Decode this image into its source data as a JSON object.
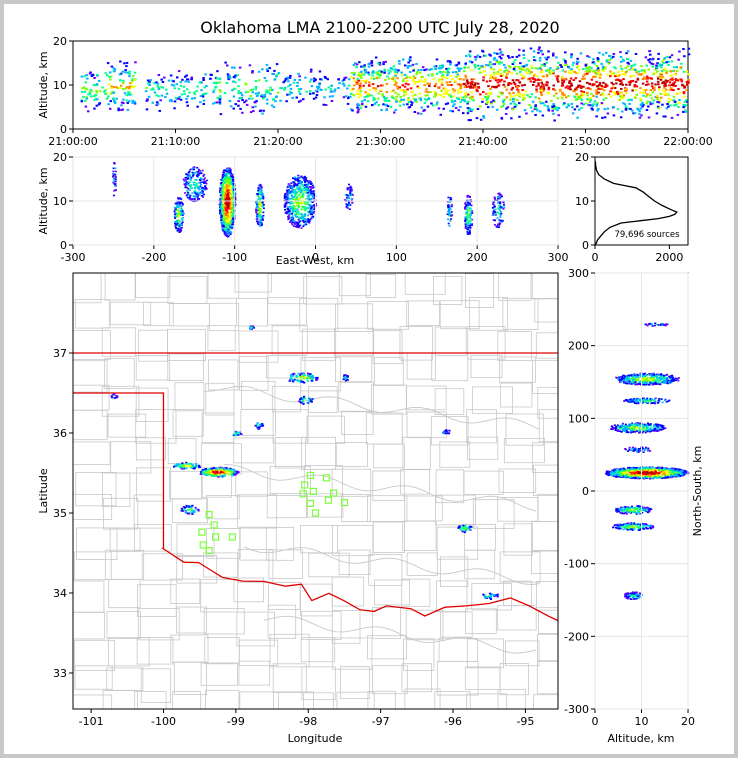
{
  "title": "Oklahoma LMA 2100-2200 UTC July 28, 2020",
  "colors": {
    "state_border": "#e00000",
    "county_lines": "#c8c8c8",
    "station": "#7cff3a",
    "palette": [
      "#6a00ff",
      "#0000ff",
      "#00b4ff",
      "#00ff90",
      "#7cff00",
      "#ffff00",
      "#ff8c00",
      "#ff0000",
      "#b40000",
      "#000000",
      "#ffffff"
    ]
  },
  "chart_data": [
    {
      "id": "time_height",
      "type": "heatmap",
      "ylabel": "Altitude, km",
      "ylim": [
        0,
        20
      ],
      "yticks": [
        "0",
        "10",
        "20"
      ],
      "xlim_minutes": [
        0,
        60
      ],
      "xticks": [
        "21:00:00",
        "21:10:00",
        "21:20:00",
        "21:30:00",
        "21:40:00",
        "21:50:00",
        "22:00:00"
      ],
      "activity": [
        {
          "start_min": 0.5,
          "end_min": 3,
          "alt_km": [
            3,
            15
          ],
          "intensity": 0.35
        },
        {
          "start_min": 3,
          "end_min": 6,
          "alt_km": [
            4,
            16
          ],
          "intensity": 0.55
        },
        {
          "start_min": 7,
          "end_min": 13,
          "alt_km": [
            4,
            14
          ],
          "intensity": 0.3
        },
        {
          "start_min": 13,
          "end_min": 20,
          "alt_km": [
            3,
            16
          ],
          "intensity": 0.35
        },
        {
          "start_min": 20,
          "end_min": 27,
          "alt_km": [
            5,
            14
          ],
          "intensity": 0.25
        },
        {
          "start_min": 27,
          "end_min": 38,
          "alt_km": [
            3,
            17
          ],
          "intensity": 0.7
        },
        {
          "start_min": 38,
          "end_min": 60,
          "alt_km": [
            2,
            19
          ],
          "intensity": 0.85
        }
      ]
    },
    {
      "id": "east_west",
      "type": "heatmap",
      "xlabel": "East-West, km",
      "ylabel": "Altitude, km",
      "xlim": [
        -300,
        300
      ],
      "ylim": [
        0,
        20
      ],
      "xticks": [
        "-300",
        "-200",
        "-100",
        "0",
        "100",
        "200",
        "300"
      ],
      "yticks": [
        "0",
        "10",
        "20"
      ],
      "cells": [
        {
          "x": -250,
          "alt": 15,
          "w": 4,
          "h": 8,
          "intensity": 0.25
        },
        {
          "x": -170,
          "alt": 7,
          "w": 12,
          "h": 8,
          "intensity": 0.5
        },
        {
          "x": -150,
          "alt": 14,
          "w": 30,
          "h": 8,
          "intensity": 0.3
        },
        {
          "x": -110,
          "alt": 10,
          "w": 20,
          "h": 16,
          "intensity": 1.0
        },
        {
          "x": -70,
          "alt": 9,
          "w": 10,
          "h": 10,
          "intensity": 0.5
        },
        {
          "x": -20,
          "alt": 10,
          "w": 40,
          "h": 12,
          "intensity": 0.45
        },
        {
          "x": 40,
          "alt": 11,
          "w": 10,
          "h": 6,
          "intensity": 0.2
        },
        {
          "x": 165,
          "alt": 8,
          "w": 6,
          "h": 8,
          "intensity": 0.2
        },
        {
          "x": 188,
          "alt": 7,
          "w": 10,
          "h": 9,
          "intensity": 0.4
        },
        {
          "x": 225,
          "alt": 8,
          "w": 15,
          "h": 8,
          "intensity": 0.25
        }
      ]
    },
    {
      "id": "altitude_histogram",
      "type": "line",
      "xlim": [
        0,
        2500
      ],
      "ylim": [
        0,
        20
      ],
      "xticks": [
        "0",
        "2000"
      ],
      "yticks": [
        "0",
        "10",
        "20"
      ],
      "annotation": "79,696 sources",
      "x": [
        0,
        40,
        60,
        100,
        150,
        250,
        400,
        700,
        1200,
        1700,
        2000,
        2150,
        2200,
        2050,
        1800,
        1600,
        1450,
        1300,
        1100,
        800,
        500,
        250,
        100,
        40,
        20,
        10
      ],
      "y": [
        0,
        0.5,
        1,
        1.5,
        2,
        3,
        4,
        5,
        5.5,
        6,
        6.5,
        7,
        7.5,
        8,
        9,
        10,
        11,
        12,
        13,
        13.5,
        14,
        15,
        16,
        17,
        18,
        19
      ]
    },
    {
      "id": "plan_view",
      "type": "scatter",
      "xlabel": "Longitude",
      "ylabel": "Latitude",
      "xlim": [
        -101.25,
        -94.55
      ],
      "ylim": [
        32.55,
        38.0
      ],
      "xticks": [
        "-101",
        "-100",
        "-99",
        "-98",
        "-97",
        "-96",
        "-95"
      ],
      "yticks": [
        "33",
        "34",
        "35",
        "36",
        "37"
      ],
      "clusters": [
        {
          "lon": -99.25,
          "lat": 35.52,
          "w_deg": 0.55,
          "h_deg": 0.12,
          "intensity": 1.0
        },
        {
          "lon": -99.7,
          "lat": 35.6,
          "w_deg": 0.45,
          "h_deg": 0.08,
          "intensity": 0.55
        },
        {
          "lon": -98.1,
          "lat": 36.7,
          "w_deg": 0.45,
          "h_deg": 0.12,
          "intensity": 0.5
        },
        {
          "lon": -98.05,
          "lat": 36.42,
          "w_deg": 0.2,
          "h_deg": 0.1,
          "intensity": 0.35
        },
        {
          "lon": -97.5,
          "lat": 36.7,
          "w_deg": 0.08,
          "h_deg": 0.08,
          "intensity": 0.35
        },
        {
          "lon": -99.65,
          "lat": 35.05,
          "w_deg": 0.25,
          "h_deg": 0.12,
          "intensity": 0.45
        },
        {
          "lon": -95.85,
          "lat": 34.82,
          "w_deg": 0.2,
          "h_deg": 0.1,
          "intensity": 0.45
        },
        {
          "lon": -95.5,
          "lat": 33.97,
          "w_deg": 0.25,
          "h_deg": 0.08,
          "intensity": 0.3
        },
        {
          "lon": -99.0,
          "lat": 36.0,
          "w_deg": 0.12,
          "h_deg": 0.06,
          "intensity": 0.3
        },
        {
          "lon": -98.7,
          "lat": 36.1,
          "w_deg": 0.12,
          "h_deg": 0.1,
          "intensity": 0.3
        },
        {
          "lon": -96.1,
          "lat": 36.02,
          "w_deg": 0.1,
          "h_deg": 0.06,
          "intensity": 0.3
        },
        {
          "lon": -98.8,
          "lat": 37.33,
          "w_deg": 0.08,
          "h_deg": 0.05,
          "intensity": 0.3
        },
        {
          "lon": -100.7,
          "lat": 36.47,
          "w_deg": 0.1,
          "h_deg": 0.05,
          "intensity": 0.3
        }
      ],
      "stations": [
        {
          "lon": -97.97,
          "lat": 35.47
        },
        {
          "lon": -97.75,
          "lat": 35.44
        },
        {
          "lon": -98.05,
          "lat": 35.35
        },
        {
          "lon": -97.93,
          "lat": 35.27
        },
        {
          "lon": -98.07,
          "lat": 35.24
        },
        {
          "lon": -97.65,
          "lat": 35.25
        },
        {
          "lon": -97.97,
          "lat": 35.12
        },
        {
          "lon": -97.72,
          "lat": 35.16
        },
        {
          "lon": -97.5,
          "lat": 35.13
        },
        {
          "lon": -97.9,
          "lat": 35.0
        },
        {
          "lon": -99.37,
          "lat": 34.98
        },
        {
          "lon": -99.3,
          "lat": 34.85
        },
        {
          "lon": -99.47,
          "lat": 34.76
        },
        {
          "lon": -99.28,
          "lat": 34.7
        },
        {
          "lon": -99.05,
          "lat": 34.7
        },
        {
          "lon": -99.45,
          "lat": 34.6
        },
        {
          "lon": -99.37,
          "lat": 34.53
        }
      ]
    },
    {
      "id": "north_south",
      "type": "heatmap",
      "xlabel": "Altitude, km",
      "ylabel": "North-South, km",
      "xlim": [
        0,
        20
      ],
      "ylim": [
        -300,
        300
      ],
      "xticks": [
        "0",
        "10",
        "20"
      ],
      "yticks": [
        "-300",
        "-200",
        "-100",
        "0",
        "100",
        "200",
        "300"
      ],
      "cells": [
        {
          "alt": 13,
          "ns": 230,
          "w": 5,
          "h": 4,
          "intensity": 0.2
        },
        {
          "alt": 11,
          "ns": 155,
          "w": 14,
          "h": 16,
          "intensity": 0.5
        },
        {
          "alt": 11,
          "ns": 125,
          "w": 10,
          "h": 8,
          "intensity": 0.35
        },
        {
          "alt": 9,
          "ns": 88,
          "w": 12,
          "h": 14,
          "intensity": 0.45
        },
        {
          "alt": 9,
          "ns": 58,
          "w": 6,
          "h": 8,
          "intensity": 0.2
        },
        {
          "alt": 11,
          "ns": 26,
          "w": 18,
          "h": 16,
          "intensity": 1.0
        },
        {
          "alt": 8,
          "ns": -25,
          "w": 8,
          "h": 12,
          "intensity": 0.45
        },
        {
          "alt": 8,
          "ns": -48,
          "w": 9,
          "h": 10,
          "intensity": 0.45
        },
        {
          "alt": 8,
          "ns": -143,
          "w": 4,
          "h": 10,
          "intensity": 0.35
        }
      ]
    }
  ]
}
